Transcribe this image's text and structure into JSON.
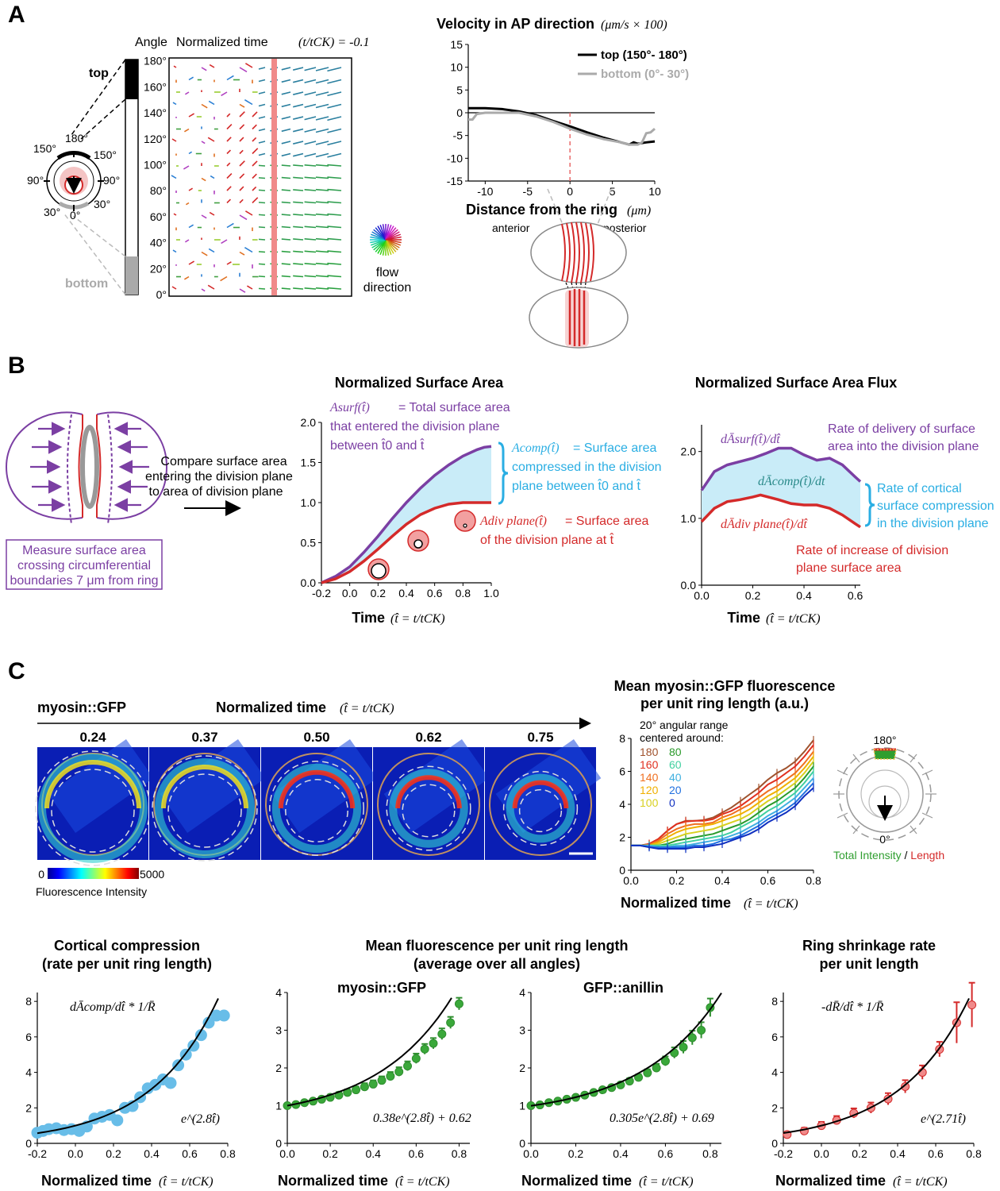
{
  "panel_labels": {
    "a": "A",
    "b": "B",
    "c": "C"
  },
  "colors": {
    "purple": "#7b3fa3",
    "red": "#d42a2a",
    "cyan": "#2aaee3",
    "fill": "#c9ecf8",
    "green": "#2f9e2f",
    "blue_dots": "#68bde8",
    "salmon": "#f08a8a"
  },
  "a_schematic": {
    "top": "top",
    "bottom": "bottom",
    "a180": "180°",
    "a150l": "150°",
    "a150r": "150°",
    "a90l": "90°",
    "a90r": "90°",
    "a30l": "30°",
    "a30r": "30°",
    "a0": "0°"
  },
  "a_quiver": {
    "header_angle": "Angle",
    "header_time": "Normalized time",
    "header_formula": "(t/tCK) = -0.1",
    "y_ticks": [
      "0°",
      "20°",
      "40°",
      "60°",
      "80°",
      "100°",
      "120°",
      "140°",
      "160°",
      "180°"
    ],
    "wheel_label_1": "flow",
    "wheel_label_2": "direction"
  },
  "a_velocity": {
    "title": "Velocity  in AP direction",
    "title_units": "(μm/s × 100)",
    "xlabel": "Distance  from  the  ring",
    "xlabel_units": "(μm)",
    "anterior": "anterior",
    "posterior": "posterior"
  },
  "b_schematic": {
    "compare_1": "Compare surface area",
    "compare_2": "entering the division plane",
    "compare_3": "to area of division plane",
    "measure_1": "Measure surface area",
    "measure_2": "crossing  circumferential",
    "measure_3": "boundaries 7 μm from ring"
  },
  "b_area": {
    "title": "Normalized Surface Area",
    "xlabel": "Time",
    "xlabel_formula": "(t̂ = t/tCK)",
    "asurf_sym": "Asurf(t̂)",
    "asurf_t1": "= Total surface area",
    "asurf_t2": "that entered the division plane",
    "asurf_t3": "between t̂0 and t̂",
    "acomp_sym": "Acomp(t̂)",
    "acomp_t1": "= Surface area",
    "acomp_t2": "compressed in the division",
    "acomp_t3": "plane between t̂0 and t̂",
    "adiv_sym": "Adiv plane(t̂)",
    "adiv_t1": "= Surface area",
    "adiv_t2": "of the division plane at t̂"
  },
  "b_flux": {
    "title": "Normalized Surface Area Flux",
    "xlabel": "Time",
    "xlabel_formula": "(t̂ = t/tCK)",
    "surf_sym": "dĀsurf(t̂)/dt̂",
    "comp_sym": "dĀcomp(t̂)/dt",
    "div_sym": "dĀdiv plane(t̂)/dt̂",
    "surf_t1": "Rate of delivery of surface",
    "surf_t2": "area into the division plane",
    "comp_t1": "Rate of cortical",
    "comp_t2": "surface compression",
    "comp_t3": "in the division plane",
    "div_t1": "Rate of increase of division",
    "div_t2": "plane surface area"
  },
  "c_images": {
    "label": "myosin::GFP",
    "time_label": "Normalized time",
    "time_formula": "(t̂ = t/tCK)",
    "times": [
      "0.24",
      "0.37",
      "0.50",
      "0.62",
      "0.75"
    ],
    "cb_min": "0",
    "cb_max": "5000",
    "cb_label": "Fluorescence Intensity"
  },
  "c_angular": {
    "title_1": "Mean myosin::GFP fluorescence",
    "title_2": "per unit ring length (a.u.)",
    "legend_title_1": "20° angular range",
    "legend_title_2": "centered around:",
    "legend_left": [
      "180",
      "160",
      "140",
      "120",
      "100"
    ],
    "legend_right": [
      "80",
      "60",
      "40",
      "20",
      "0"
    ],
    "xlabel": "Normalized time",
    "xlabel_formula": "(t̂ = t/tCK)",
    "dial_180": "180°",
    "dial_0": "0°",
    "total_intensity": "Total Intensity",
    "slash": " / ",
    "length": "Length"
  },
  "c_bottom": {
    "cc_title_1": "Cortical compression",
    "cc_title_2": "(rate per unit ring length)",
    "cc_formula": "dĀcomp/dt̂ * 1/R̄",
    "cc_fit": "e^(2.8t̂)",
    "mf_title_1": "Mean  fluorescence per unit ring length",
    "mf_title_2": "(average over all angles)",
    "myo_label": "myosin::GFP",
    "myo_fit": "0.38e^(2.8t̂) + 0.62",
    "ani_label": "GFP::anillin",
    "ani_fit": "0.305e^(2.8t̂) + 0.69",
    "rs_title_1": "Ring shrinkage rate",
    "rs_title_2": "per unit length",
    "rs_formula": "-dR̄/dt̂ * 1/R̄",
    "rs_fit": "e^(2.71t̂)",
    "xlabel": "Normalized time",
    "xlabel_formula": "(t̂ = t/tCK)"
  },
  "chart_data": [
    {
      "type": "line",
      "id": "velocity",
      "title": "Velocity  in AP direction",
      "xlabel": "Distance  from  the  ring (μm)",
      "ylabel": "",
      "xlim": [
        -12,
        10
      ],
      "ylim": [
        -15,
        15
      ],
      "xticks": [
        -10,
        -5,
        0,
        5,
        10
      ],
      "yticks": [
        15,
        10,
        5,
        0,
        -5,
        -10,
        -15
      ],
      "legend": "top-right",
      "series": [
        {
          "name": "top (150°- 180°)",
          "color": "#000000",
          "x": [
            -12,
            -10,
            -8,
            -6,
            -4,
            -2,
            0,
            2,
            4,
            6,
            7,
            7.5,
            8,
            9,
            10
          ],
          "y": [
            1,
            1,
            0.8,
            0.3,
            -0.5,
            -1.8,
            -3,
            -4.3,
            -5.5,
            -6.5,
            -7,
            -6.5,
            -6.8,
            -6.5,
            -6.3
          ]
        },
        {
          "name": "bottom (0°- 30°)",
          "color": "#aaaaaa",
          "x": [
            -12,
            -11.5,
            -11,
            -10,
            -8,
            -6,
            -4,
            -2,
            0,
            2,
            4,
            6,
            7,
            7.5,
            8,
            8.5,
            9,
            9.5,
            10
          ],
          "y": [
            -1.5,
            -1.5,
            -0.3,
            0,
            0,
            0,
            -0.8,
            -2,
            -3.5,
            -4.8,
            -5.8,
            -6.5,
            -7,
            -7,
            -7,
            -6.5,
            -4.5,
            -4.3,
            -3.5
          ]
        }
      ],
      "annotations": [
        {
          "type": "vline",
          "x": 0,
          "color": "#e86a6a"
        },
        {
          "type": "hline",
          "y": 0
        }
      ]
    },
    {
      "type": "area",
      "id": "surface_area",
      "title": "Normalized Surface Area",
      "xlabel": "Time",
      "xlim": [
        -0.2,
        1.0
      ],
      "ylim": [
        0,
        2.0
      ],
      "xticks": [
        -0.2,
        0.0,
        0.2,
        0.4,
        0.6,
        0.8,
        1.0
      ],
      "yticks": [
        0.0,
        0.5,
        1.0,
        1.5,
        2.0
      ],
      "series": [
        {
          "name": "Asurf",
          "color": "#7b3fa3",
          "x": [
            -0.2,
            -0.1,
            0,
            0.1,
            0.2,
            0.3,
            0.4,
            0.5,
            0.6,
            0.7,
            0.8,
            0.9,
            0.95,
            1.0
          ],
          "y": [
            0,
            0.08,
            0.2,
            0.38,
            0.58,
            0.8,
            1.0,
            1.18,
            1.34,
            1.47,
            1.58,
            1.66,
            1.69,
            1.7
          ]
        },
        {
          "name": "Adiv plane",
          "color": "#d42a2a",
          "x": [
            -0.2,
            -0.1,
            0,
            0.1,
            0.2,
            0.3,
            0.4,
            0.5,
            0.6,
            0.7,
            0.8,
            0.9,
            1.0
          ],
          "y": [
            0,
            0.05,
            0.14,
            0.27,
            0.42,
            0.58,
            0.73,
            0.85,
            0.93,
            0.98,
            1.0,
            1.0,
            1.0
          ]
        }
      ]
    },
    {
      "type": "area",
      "id": "surface_flux",
      "title": "Normalized Surface Area Flux",
      "xlabel": "Time",
      "xlim": [
        0,
        0.62
      ],
      "ylim": [
        0,
        2.4
      ],
      "xticks": [
        0.0,
        0.2,
        0.4,
        0.6
      ],
      "yticks": [
        0.0,
        1.0,
        2.0
      ],
      "series": [
        {
          "name": "dAsurf/dt",
          "color": "#7b3fa3",
          "x": [
            0,
            0.05,
            0.1,
            0.15,
            0.2,
            0.25,
            0.3,
            0.35,
            0.4,
            0.45,
            0.5,
            0.55,
            0.6,
            0.62
          ],
          "y": [
            1.42,
            1.7,
            1.8,
            1.85,
            1.9,
            1.97,
            2.05,
            2.05,
            1.95,
            1.87,
            1.9,
            1.8,
            1.62,
            1.55
          ]
        },
        {
          "name": "dAdiv plane/dt",
          "color": "#d42a2a",
          "x": [
            0,
            0.05,
            0.1,
            0.15,
            0.2,
            0.23,
            0.3,
            0.35,
            0.4,
            0.45,
            0.5,
            0.55,
            0.6,
            0.62
          ],
          "y": [
            0.95,
            1.15,
            1.25,
            1.28,
            1.32,
            1.35,
            1.28,
            1.22,
            1.2,
            1.2,
            1.15,
            1.05,
            0.92,
            0.87
          ]
        }
      ]
    },
    {
      "type": "line",
      "id": "angular_myosin",
      "title": "Mean myosin::GFP fluorescence per unit ring length (a.u.)",
      "xlabel": "Normalized time",
      "xlim": [
        0,
        0.8
      ],
      "ylim": [
        0,
        8
      ],
      "xticks": [
        0.0,
        0.2,
        0.4,
        0.6,
        0.8
      ],
      "yticks": [
        0,
        2,
        4,
        6,
        8
      ],
      "legend": "top-left",
      "x": [
        0,
        0.04,
        0.08,
        0.12,
        0.16,
        0.2,
        0.24,
        0.28,
        0.32,
        0.36,
        0.4,
        0.44,
        0.48,
        0.52,
        0.56,
        0.6,
        0.64,
        0.68,
        0.72,
        0.76,
        0.8
      ],
      "series": [
        {
          "name": "180",
          "color": "#a0522d",
          "values": [
            1.5,
            1.5,
            1.6,
            1.9,
            2.4,
            2.8,
            3.0,
            3.0,
            3.05,
            3.2,
            3.5,
            3.8,
            4.2,
            4.6,
            5.0,
            5.5,
            5.9,
            6.2,
            6.6,
            7.2,
            7.9
          ]
        },
        {
          "name": "160",
          "color": "#e03020",
          "values": [
            1.5,
            1.5,
            1.6,
            1.9,
            2.4,
            2.8,
            2.95,
            3.0,
            3.0,
            3.1,
            3.4,
            3.6,
            3.9,
            4.3,
            4.7,
            5.2,
            5.5,
            5.9,
            6.3,
            6.9,
            7.6
          ]
        },
        {
          "name": "140",
          "color": "#f07020",
          "values": [
            1.5,
            1.5,
            1.55,
            1.8,
            2.2,
            2.5,
            2.7,
            2.8,
            2.8,
            2.9,
            3.2,
            3.4,
            3.7,
            4.0,
            4.4,
            4.8,
            5.1,
            5.5,
            5.9,
            6.5,
            7.2
          ]
        },
        {
          "name": "120",
          "color": "#f0b000",
          "values": [
            1.5,
            1.5,
            1.5,
            1.7,
            2.0,
            2.3,
            2.5,
            2.6,
            2.7,
            2.8,
            3.0,
            3.2,
            3.4,
            3.7,
            4.1,
            4.5,
            4.8,
            5.2,
            5.6,
            6.2,
            6.9
          ]
        },
        {
          "name": "100",
          "color": "#d8d020",
          "values": [
            1.5,
            1.5,
            1.5,
            1.6,
            1.8,
            2.0,
            2.2,
            2.3,
            2.4,
            2.5,
            2.7,
            2.9,
            3.1,
            3.4,
            3.8,
            4.2,
            4.5,
            4.9,
            5.3,
            5.9,
            6.6
          ]
        },
        {
          "name": "80",
          "color": "#2a9a2a",
          "values": [
            1.5,
            1.5,
            1.5,
            1.5,
            1.6,
            1.8,
            1.9,
            2.0,
            2.1,
            2.2,
            2.4,
            2.6,
            2.8,
            3.1,
            3.5,
            3.9,
            4.2,
            4.6,
            5.0,
            5.6,
            6.3
          ]
        },
        {
          "name": "60",
          "color": "#40d0a0",
          "values": [
            1.5,
            1.5,
            1.5,
            1.5,
            1.5,
            1.6,
            1.7,
            1.8,
            1.9,
            2.0,
            2.1,
            2.3,
            2.6,
            2.9,
            3.2,
            3.6,
            3.9,
            4.3,
            4.7,
            5.3,
            6.0
          ]
        },
        {
          "name": "40",
          "color": "#40b0e0",
          "values": [
            1.5,
            1.5,
            1.5,
            1.4,
            1.4,
            1.5,
            1.5,
            1.6,
            1.7,
            1.8,
            1.9,
            2.1,
            2.3,
            2.6,
            2.9,
            3.3,
            3.6,
            4.0,
            4.4,
            5.0,
            5.6
          ]
        },
        {
          "name": "20",
          "color": "#2070e0",
          "values": [
            1.5,
            1.5,
            1.4,
            1.4,
            1.4,
            1.4,
            1.4,
            1.5,
            1.5,
            1.6,
            1.8,
            1.9,
            2.1,
            2.4,
            2.7,
            3.1,
            3.4,
            3.7,
            4.1,
            4.7,
            5.3
          ]
        },
        {
          "name": "0",
          "color": "#1030c0",
          "values": [
            1.5,
            1.5,
            1.4,
            1.3,
            1.3,
            1.3,
            1.3,
            1.4,
            1.4,
            1.5,
            1.6,
            1.8,
            2.0,
            2.2,
            2.5,
            2.9,
            3.2,
            3.5,
            3.9,
            4.5,
            5.0
          ]
        }
      ]
    },
    {
      "type": "scatter",
      "id": "cortical_compression",
      "title": "Cortical compression (rate per unit ring length)",
      "xlabel": "Normalized time",
      "xlim": [
        -0.2,
        0.8
      ],
      "ylim": [
        0,
        8.5
      ],
      "xticks": [
        -0.2,
        0.0,
        0.2,
        0.4,
        0.6,
        0.8
      ],
      "yticks": [
        0,
        2,
        4,
        6,
        8
      ],
      "x": [
        -0.2,
        -0.17,
        -0.14,
        -0.1,
        -0.06,
        -0.02,
        0.02,
        0.06,
        0.1,
        0.14,
        0.18,
        0.22,
        0.26,
        0.3,
        0.34,
        0.38,
        0.42,
        0.46,
        0.5,
        0.54,
        0.58,
        0.62,
        0.66,
        0.7,
        0.74,
        0.78
      ],
      "y": [
        0.6,
        0.7,
        0.8,
        0.85,
        0.75,
        0.8,
        0.7,
        0.95,
        1.4,
        1.5,
        1.6,
        1.3,
        2.0,
        2.1,
        2.6,
        3.1,
        3.3,
        3.6,
        3.4,
        4.4,
        5.0,
        5.5,
        6.1,
        6.8,
        7.2,
        7.2
      ],
      "fit": "e^(2.8t)"
    },
    {
      "type": "scatter",
      "id": "myosin_mean",
      "title": "myosin::GFP",
      "xlabel": "Normalized time",
      "xlim": [
        0,
        0.85
      ],
      "ylim": [
        0,
        4
      ],
      "xticks": [
        0.0,
        0.2,
        0.4,
        0.6,
        0.8
      ],
      "yticks": [
        0,
        1,
        2,
        3,
        4
      ],
      "x": [
        0,
        0.04,
        0.08,
        0.12,
        0.16,
        0.2,
        0.24,
        0.28,
        0.32,
        0.36,
        0.4,
        0.44,
        0.48,
        0.52,
        0.56,
        0.6,
        0.64,
        0.68,
        0.72,
        0.76,
        0.8
      ],
      "y": [
        1.0,
        1.03,
        1.08,
        1.12,
        1.17,
        1.22,
        1.28,
        1.35,
        1.42,
        1.5,
        1.57,
        1.67,
        1.78,
        1.9,
        2.05,
        2.25,
        2.5,
        2.65,
        2.9,
        3.2,
        3.7
      ],
      "fit": "0.38e^(2.8t) + 0.62"
    },
    {
      "type": "scatter",
      "id": "anillin_mean",
      "title": "GFP::anillin",
      "xlabel": "Normalized time",
      "xlim": [
        0,
        0.85
      ],
      "ylim": [
        0,
        4
      ],
      "xticks": [
        0.0,
        0.2,
        0.4,
        0.6,
        0.8
      ],
      "yticks": [
        0,
        1,
        2,
        3,
        4
      ],
      "x": [
        0,
        0.04,
        0.08,
        0.12,
        0.16,
        0.2,
        0.24,
        0.28,
        0.32,
        0.36,
        0.4,
        0.44,
        0.48,
        0.52,
        0.56,
        0.6,
        0.64,
        0.68,
        0.72,
        0.76,
        0.8
      ],
      "y": [
        1.0,
        1.02,
        1.08,
        1.12,
        1.17,
        1.22,
        1.28,
        1.35,
        1.42,
        1.48,
        1.55,
        1.65,
        1.75,
        1.87,
        2.0,
        2.18,
        2.4,
        2.55,
        2.8,
        3.0,
        3.6
      ],
      "fit": "0.305e^(2.8t) + 0.69"
    },
    {
      "type": "scatter",
      "id": "ring_shrinkage",
      "title": "Ring shrinkage rate per unit length",
      "xlabel": "Normalized time",
      "xlim": [
        -0.2,
        0.8
      ],
      "ylim": [
        0,
        8.5
      ],
      "xticks": [
        -0.2,
        0.0,
        0.2,
        0.4,
        0.6,
        0.8
      ],
      "yticks": [
        0,
        2,
        4,
        6,
        8
      ],
      "x": [
        -0.18,
        -0.09,
        0.0,
        0.08,
        0.17,
        0.26,
        0.35,
        0.44,
        0.53,
        0.62,
        0.71,
        0.79
      ],
      "y": [
        0.5,
        0.7,
        1.0,
        1.3,
        1.7,
        2.0,
        2.5,
        3.2,
        4.0,
        5.3,
        6.8,
        7.8
      ],
      "fit": "e^(2.71t)"
    }
  ]
}
